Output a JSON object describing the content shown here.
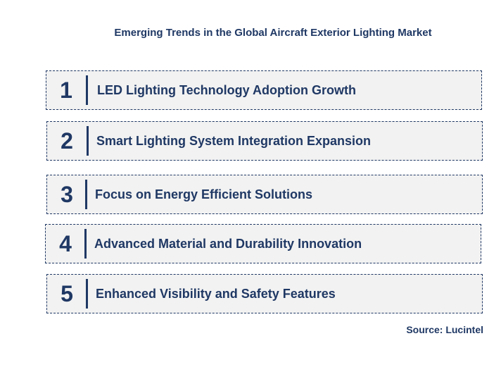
{
  "title": "Emerging Trends in the Global Aircraft Exterior Lighting Market",
  "trends": [
    {
      "number": "1",
      "label": "LED Lighting Technology Adoption Growth"
    },
    {
      "number": "2",
      "label": "Smart Lighting System Integration Expansion"
    },
    {
      "number": "3",
      "label": "Focus on Energy Efficient Solutions"
    },
    {
      "number": "4",
      "label": "Advanced Material and Durability Innovation"
    },
    {
      "number": "5",
      "label": "Enhanced Visibility and Safety Features"
    }
  ],
  "source": "Source: Lucintel",
  "colors": {
    "text": "#1f3864",
    "box_fill": "#f2f2f2"
  }
}
